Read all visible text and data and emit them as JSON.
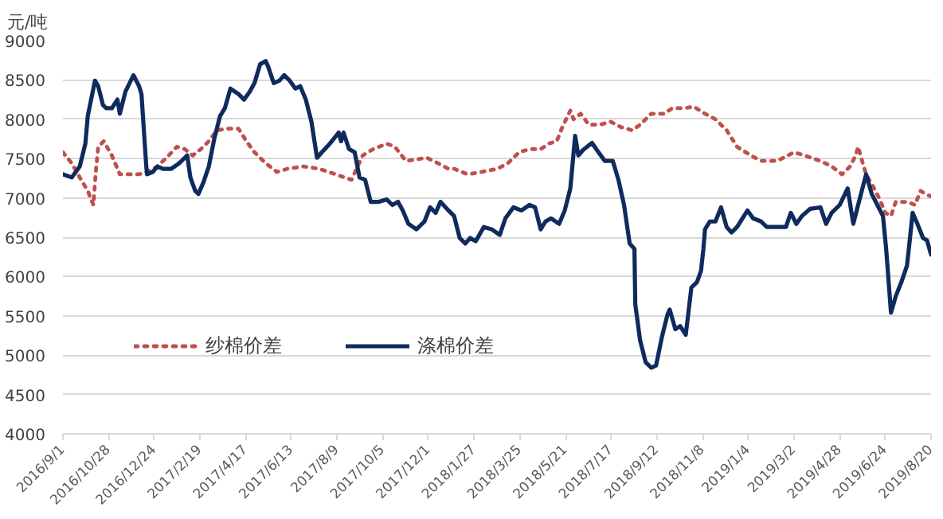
{
  "chart_data": {
    "type": "line",
    "ylabel": "元/吨",
    "ylim": [
      4000,
      9000
    ],
    "yticks": [
      4000,
      4500,
      5000,
      5500,
      6000,
      6500,
      7000,
      7500,
      8000,
      8500,
      9000
    ],
    "xlim": [
      "2016-09-01",
      "2019-08-20"
    ],
    "xticks": [
      {
        "value": "2016-09-01",
        "label": "2016/9/1"
      },
      {
        "value": "2016-10-28",
        "label": "2016/10/28"
      },
      {
        "value": "2016-12-24",
        "label": "2016/12/24"
      },
      {
        "value": "2017-02-19",
        "label": "2017/2/19"
      },
      {
        "value": "2017-04-17",
        "label": "2017/4/17"
      },
      {
        "value": "2017-06-13",
        "label": "2017/6/13"
      },
      {
        "value": "2017-08-09",
        "label": "2017/8/9"
      },
      {
        "value": "2017-10-05",
        "label": "2017/10/5"
      },
      {
        "value": "2017-12-01",
        "label": "2017/12/1"
      },
      {
        "value": "2018-01-27",
        "label": "2018/1/27"
      },
      {
        "value": "2018-03-25",
        "label": "2018/3/25"
      },
      {
        "value": "2018-05-21",
        "label": "2018/5/21"
      },
      {
        "value": "2018-07-17",
        "label": "2018/7/17"
      },
      {
        "value": "2018-09-12",
        "label": "2018/9/12"
      },
      {
        "value": "2018-11-08",
        "label": "2018/11/8"
      },
      {
        "value": "2019-01-04",
        "label": "2019/1/4"
      },
      {
        "value": "2019-03-02",
        "label": "2019/3/2"
      },
      {
        "value": "2019-04-28",
        "label": "2019/4/28"
      },
      {
        "value": "2019-06-24",
        "label": "2019/6/24"
      },
      {
        "value": "2019-08-20",
        "label": "2019/8/20"
      }
    ],
    "grid": "y",
    "legend": "bottom left",
    "marker": "none",
    "series": [
      {
        "name": "纱棉价差",
        "color": "#c0504d",
        "line_style": "dotted",
        "x": [
          "2016-09-01",
          "2016-09-12",
          "2016-09-22",
          "2016-10-02",
          "2016-10-09",
          "2016-10-12",
          "2016-10-15",
          "2016-10-22",
          "2016-11-01",
          "2016-11-11",
          "2016-11-21",
          "2016-12-05",
          "2016-12-15",
          "2016-12-28",
          "2017-01-11",
          "2017-01-21",
          "2017-01-31",
          "2017-02-10",
          "2017-02-20",
          "2017-03-02",
          "2017-03-12",
          "2017-03-26",
          "2017-04-08",
          "2017-04-18",
          "2017-04-28",
          "2017-05-12",
          "2017-05-26",
          "2017-06-08",
          "2017-06-28",
          "2017-07-18",
          "2017-08-07",
          "2017-08-27",
          "2017-09-10",
          "2017-09-23",
          "2017-10-10",
          "2017-10-20",
          "2017-11-03",
          "2017-11-16",
          "2017-11-29",
          "2017-12-13",
          "2017-12-26",
          "2018-01-02",
          "2018-01-19",
          "2018-02-05",
          "2018-02-25",
          "2018-03-10",
          "2018-03-24",
          "2018-04-06",
          "2018-04-20",
          "2018-04-30",
          "2018-05-10",
          "2018-05-17",
          "2018-05-27",
          "2018-05-31",
          "2018-06-09",
          "2018-06-19",
          "2018-07-03",
          "2018-07-16",
          "2018-07-29",
          "2018-08-12",
          "2018-08-22",
          "2018-09-05",
          "2018-09-21",
          "2018-10-01",
          "2018-10-15",
          "2018-10-28",
          "2018-11-11",
          "2018-11-24",
          "2018-12-08",
          "2018-12-21",
          "2019-01-07",
          "2019-01-20",
          "2019-02-09",
          "2019-03-02",
          "2019-03-15",
          "2019-04-04",
          "2019-04-18",
          "2019-05-01",
          "2019-05-11",
          "2019-05-18",
          "2019-05-21",
          "2019-05-26",
          "2019-05-31",
          "2019-06-10",
          "2019-06-17",
          "2019-06-24",
          "2019-07-01",
          "2019-07-07",
          "2019-07-21",
          "2019-07-31",
          "2019-08-07",
          "2019-08-13",
          "2019-08-20"
        ],
        "values": [
          7580,
          7440,
          7260,
          7090,
          6910,
          7330,
          7650,
          7720,
          7540,
          7300,
          7300,
          7300,
          7330,
          7400,
          7540,
          7650,
          7620,
          7540,
          7620,
          7720,
          7860,
          7880,
          7880,
          7720,
          7580,
          7440,
          7330,
          7370,
          7400,
          7370,
          7300,
          7230,
          7540,
          7620,
          7690,
          7650,
          7470,
          7490,
          7510,
          7440,
          7370,
          7370,
          7300,
          7330,
          7370,
          7440,
          7580,
          7620,
          7620,
          7690,
          7720,
          7900,
          8110,
          8000,
          8070,
          7930,
          7930,
          7970,
          7900,
          7860,
          7930,
          8070,
          8070,
          8140,
          8140,
          8160,
          8070,
          8000,
          7860,
          7650,
          7540,
          7470,
          7470,
          7580,
          7540,
          7470,
          7400,
          7300,
          7400,
          7540,
          7650,
          7470,
          7300,
          7120,
          6980,
          6810,
          6770,
          6950,
          6950,
          6910,
          7090,
          7050,
          7020
        ]
      },
      {
        "name": "涤棉价差",
        "color": "#0f2b5e",
        "line_style": "solid",
        "x": [
          "2016-09-01",
          "2016-09-12",
          "2016-09-22",
          "2016-09-29",
          "2016-10-02",
          "2016-10-11",
          "2016-10-15",
          "2016-10-21",
          "2016-10-25",
          "2016-11-01",
          "2016-11-08",
          "2016-11-11",
          "2016-11-18",
          "2016-11-28",
          "2016-12-05",
          "2016-12-08",
          "2016-12-14",
          "2016-12-15",
          "2016-12-22",
          "2016-12-28",
          "2017-01-04",
          "2017-01-14",
          "2017-01-24",
          "2017-02-03",
          "2017-02-07",
          "2017-02-13",
          "2017-02-17",
          "2017-02-23",
          "2017-03-02",
          "2017-03-09",
          "2017-03-16",
          "2017-03-22",
          "2017-03-29",
          "2017-04-08",
          "2017-04-15",
          "2017-04-22",
          "2017-04-28",
          "2017-05-05",
          "2017-05-12",
          "2017-05-15",
          "2017-05-22",
          "2017-05-29",
          "2017-06-04",
          "2017-06-11",
          "2017-06-18",
          "2017-06-24",
          "2017-07-01",
          "2017-07-08",
          "2017-07-15",
          "2017-07-21",
          "2017-07-31",
          "2017-08-11",
          "2017-08-14",
          "2017-08-17",
          "2017-08-24",
          "2017-08-31",
          "2017-09-06",
          "2017-09-13",
          "2017-09-20",
          "2017-09-30",
          "2017-10-10",
          "2017-10-17",
          "2017-10-24",
          "2017-10-30",
          "2017-11-06",
          "2017-11-16",
          "2017-11-26",
          "2017-12-03",
          "2017-12-10",
          "2017-12-16",
          "2017-12-26",
          "2018-01-02",
          "2018-01-09",
          "2018-01-16",
          "2018-01-22",
          "2018-01-29",
          "2018-02-08",
          "2018-02-18",
          "2018-02-28",
          "2018-03-07",
          "2018-03-17",
          "2018-03-27",
          "2018-04-06",
          "2018-04-13",
          "2018-04-20",
          "2018-04-26",
          "2018-05-03",
          "2018-05-13",
          "2018-05-20",
          "2018-05-27",
          "2018-06-02",
          "2018-06-06",
          "2018-06-12",
          "2018-06-23",
          "2018-06-29",
          "2018-07-09",
          "2018-07-19",
          "2018-07-26",
          "2018-08-02",
          "2018-08-09",
          "2018-08-15",
          "2018-08-16",
          "2018-08-22",
          "2018-08-29",
          "2018-09-05",
          "2018-09-11",
          "2018-09-18",
          "2018-09-25",
          "2018-09-28",
          "2018-10-05",
          "2018-10-11",
          "2018-10-18",
          "2018-10-25",
          "2018-11-01",
          "2018-11-06",
          "2018-11-09",
          "2018-11-11",
          "2018-11-17",
          "2018-11-24",
          "2018-12-01",
          "2018-12-08",
          "2018-12-14",
          "2018-12-21",
          "2019-01-03",
          "2019-01-10",
          "2019-01-20",
          "2019-01-27",
          "2019-02-09",
          "2019-02-20",
          "2019-02-26",
          "2019-03-05",
          "2019-03-12",
          "2019-03-22",
          "2019-04-04",
          "2019-04-11",
          "2019-04-18",
          "2019-04-28",
          "2019-05-08",
          "2019-05-15",
          "2019-05-21",
          "2019-05-31",
          "2019-06-07",
          "2019-06-14",
          "2019-06-21",
          "2019-06-25",
          "2019-07-01",
          "2019-07-07",
          "2019-07-14",
          "2019-07-21",
          "2019-07-24",
          "2019-07-28",
          "2019-08-03",
          "2019-08-10",
          "2019-08-15",
          "2019-08-20"
        ],
        "values": [
          7300,
          7260,
          7400,
          7690,
          8040,
          8490,
          8420,
          8180,
          8140,
          8140,
          8250,
          8070,
          8350,
          8560,
          8420,
          8320,
          7400,
          7300,
          7330,
          7400,
          7370,
          7370,
          7440,
          7540,
          7260,
          7090,
          7050,
          7190,
          7400,
          7760,
          8040,
          8140,
          8390,
          8320,
          8250,
          8350,
          8460,
          8700,
          8740,
          8670,
          8460,
          8490,
          8560,
          8490,
          8390,
          8420,
          8250,
          7970,
          7510,
          7580,
          7690,
          7830,
          7720,
          7830,
          7620,
          7580,
          7260,
          7230,
          6950,
          6950,
          6980,
          6910,
          6950,
          6840,
          6670,
          6600,
          6700,
          6880,
          6810,
          6950,
          6840,
          6770,
          6490,
          6420,
          6490,
          6450,
          6630,
          6600,
          6530,
          6740,
          6880,
          6840,
          6910,
          6880,
          6600,
          6700,
          6740,
          6670,
          6840,
          7120,
          7790,
          7540,
          7610,
          7700,
          7610,
          7470,
          7470,
          7230,
          6910,
          6420,
          6350,
          5650,
          5190,
          4910,
          4840,
          4870,
          5220,
          5510,
          5580,
          5330,
          5370,
          5260,
          5860,
          5930,
          6070,
          6350,
          6600,
          6700,
          6700,
          6880,
          6630,
          6560,
          6630,
          6840,
          6740,
          6700,
          6630,
          6630,
          6630,
          6810,
          6670,
          6770,
          6860,
          6880,
          6670,
          6810,
          6910,
          7120,
          6670,
          6910,
          7300,
          7050,
          6910,
          6770,
          6350,
          5540,
          5750,
          5930,
          6140,
          6420,
          6810,
          6670,
          6490,
          6460,
          6280
        ]
      }
    ]
  }
}
